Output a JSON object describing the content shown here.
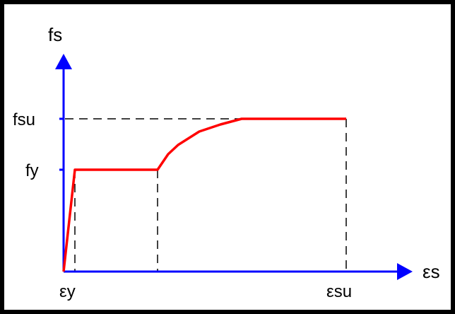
{
  "diagram": {
    "y_axis_label": "fs",
    "x_axis_label": "εs",
    "y_ticks": {
      "upper": "fsu",
      "lower": "fy"
    },
    "x_ticks": {
      "left": "εy",
      "right": "εsu"
    },
    "colors": {
      "border": "#000000",
      "axes": "#0000ff",
      "curve": "#ff0000",
      "guides": "#000000",
      "text": "#000000"
    }
  }
}
